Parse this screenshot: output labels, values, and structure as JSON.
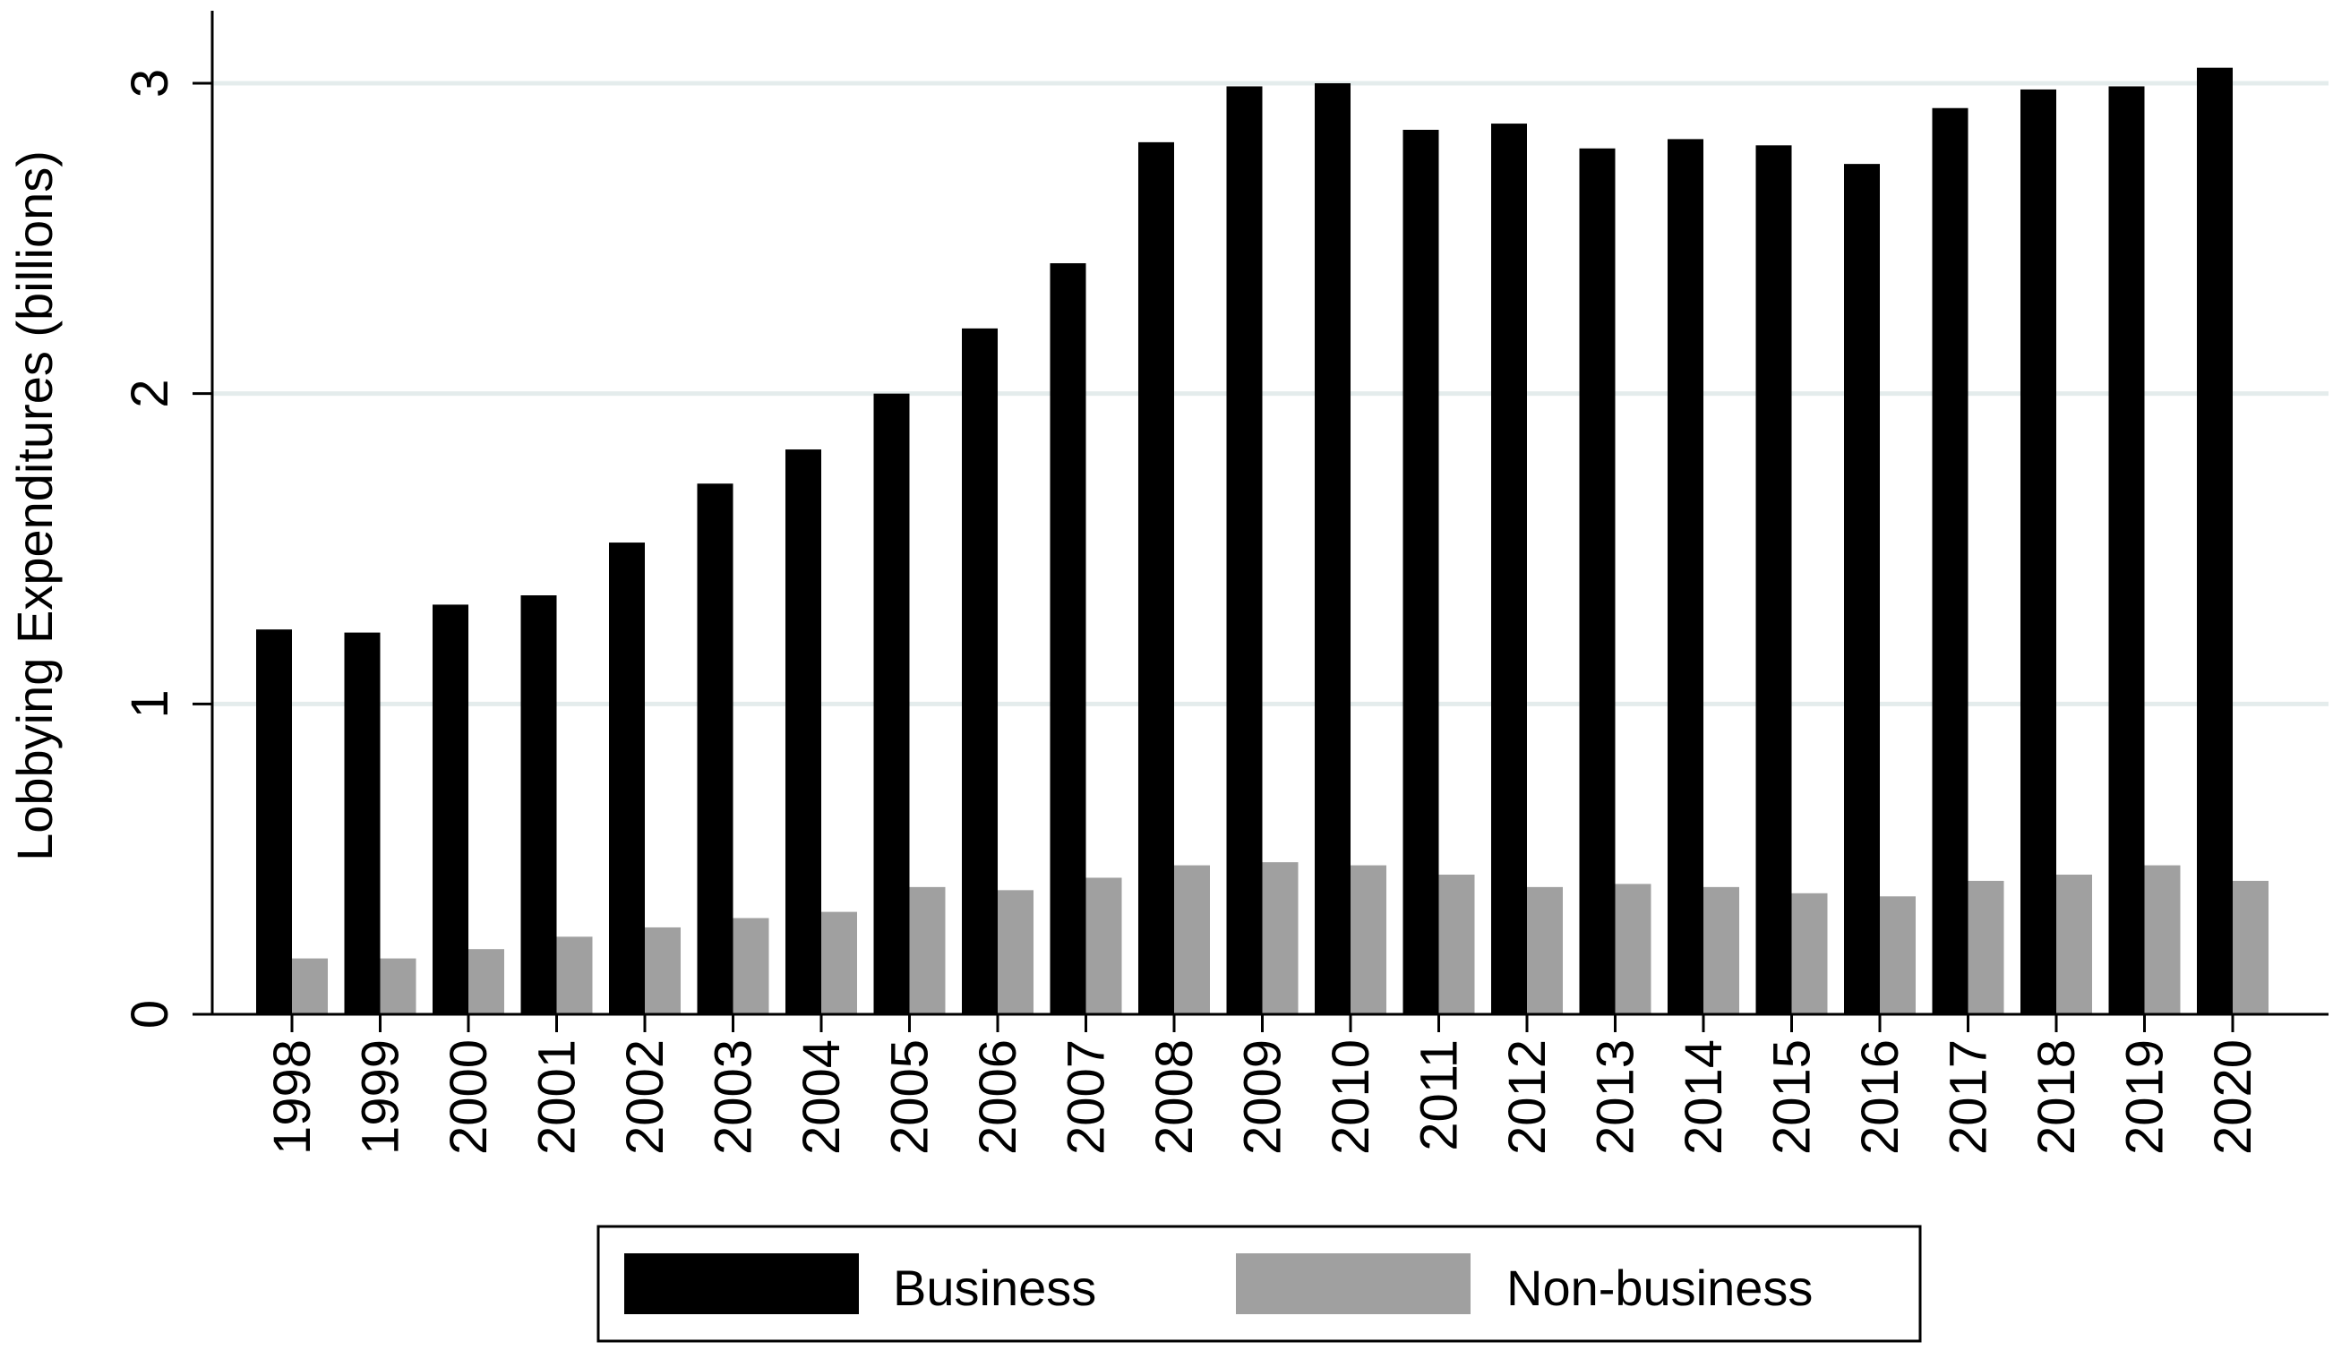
{
  "chart_data": {
    "type": "bar",
    "title": "",
    "xlabel": "",
    "ylabel": "Lobbying Expenditures (billions)",
    "ylim": [
      0,
      3.25
    ],
    "yticks": [
      0,
      1,
      2,
      3
    ],
    "grid": true,
    "legend_position": "bottom",
    "categories": [
      "1998",
      "1999",
      "2000",
      "2001",
      "2002",
      "2003",
      "2004",
      "2005",
      "2006",
      "2007",
      "2008",
      "2009",
      "2010",
      "2011",
      "2012",
      "2013",
      "2014",
      "2015",
      "2016",
      "2017",
      "2018",
      "2019",
      "2020"
    ],
    "series": [
      {
        "name": "Business",
        "color": "#000000",
        "values": [
          1.24,
          1.23,
          1.32,
          1.35,
          1.52,
          1.71,
          1.82,
          2.0,
          2.21,
          2.42,
          2.81,
          2.99,
          3.0,
          2.85,
          2.87,
          2.79,
          2.82,
          2.8,
          2.74,
          2.92,
          2.98,
          2.99,
          3.05
        ]
      },
      {
        "name": "Non-business",
        "color": "#a0a0a0",
        "values": [
          0.18,
          0.18,
          0.21,
          0.25,
          0.28,
          0.31,
          0.33,
          0.41,
          0.4,
          0.44,
          0.48,
          0.49,
          0.48,
          0.45,
          0.41,
          0.42,
          0.41,
          0.39,
          0.38,
          0.43,
          0.45,
          0.48,
          0.43
        ]
      }
    ]
  }
}
